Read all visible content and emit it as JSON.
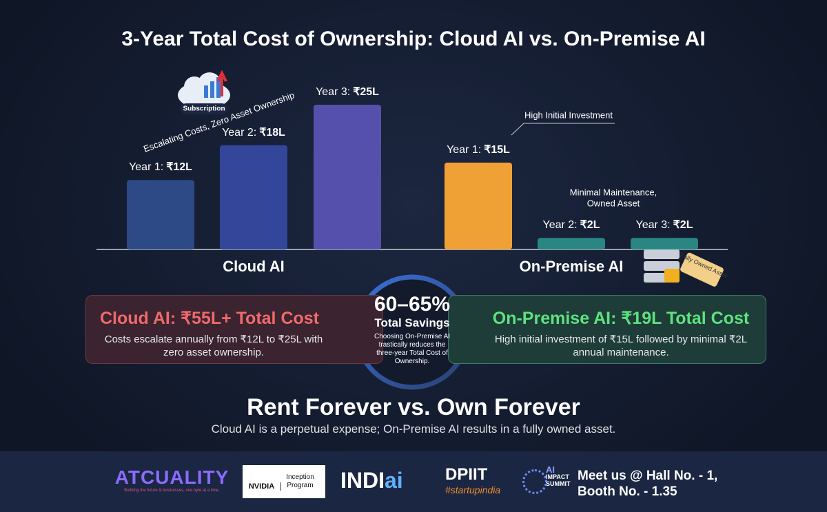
{
  "chart_data": {
    "type": "bar",
    "title": "3-Year Total Cost of Ownership: Cloud AI vs. On-Premise AI",
    "groups": [
      {
        "name": "Cloud AI",
        "categories": [
          "Year 1:",
          "Year 2:",
          "Year 3:"
        ],
        "values": [
          12,
          18,
          25
        ],
        "value_labels": [
          "₹12L",
          "₹18L",
          "₹25L"
        ],
        "colors": [
          "#2d4a86",
          "#34469a",
          "#5650ad"
        ]
      },
      {
        "name": "On-Premise AI",
        "categories": [
          "Year 1:",
          "Year 2:",
          "Year 3:"
        ],
        "values": [
          15,
          2,
          2
        ],
        "value_labels": [
          "₹15L",
          "₹2L",
          "₹2L"
        ],
        "colors": [
          "#f0a135",
          "#2a8682",
          "#2a8682"
        ]
      }
    ],
    "annotations": [
      [
        "Escalating Costs, Zero Asset Ownership"
      ],
      [
        "High Initial Investment"
      ],
      [
        "Minimal Maintenance,",
        "Owned Asset"
      ]
    ],
    "icon_labels": [
      "Subscription",
      "Fully Owned Asset"
    ]
  },
  "summary": {
    "cloud": {
      "title": "Cloud AI: ₹55L+ Total Cost",
      "text": "Costs escalate annually from ₹12L to ₹25L with zero asset ownership."
    },
    "savings": {
      "percent": "60–65%",
      "label": "Total Savings",
      "text": "Choosing On-Premise AI trastically reduces the three-year Total Cost of Ownership."
    },
    "onprem": {
      "title": "On-Premise AI: ₹19L Total Cost",
      "text": "High initial investment of ₹15L followed by minimal ₹2L annual maintenance."
    }
  },
  "closing": {
    "heading": "Rent Forever vs. Own Forever",
    "text": "Cloud AI is a perpetual expense; On-Premise AI results in a fully owned asset."
  },
  "footer": {
    "atcuality": "ATCUALITY",
    "tagline": "Building the future & businesses, one byte at a time.",
    "nvidia": "NVIDIA",
    "inception": "Inception Program",
    "indiaai": [
      "INDI",
      "ai"
    ],
    "dpiit": "DPIIT",
    "startup": "#startupindia",
    "summit": [
      "AI",
      "IMPACT",
      "SUMMIT"
    ],
    "meet": [
      "Meet us @ Hall No. - 1,",
      "Booth No. -  1.35"
    ]
  }
}
